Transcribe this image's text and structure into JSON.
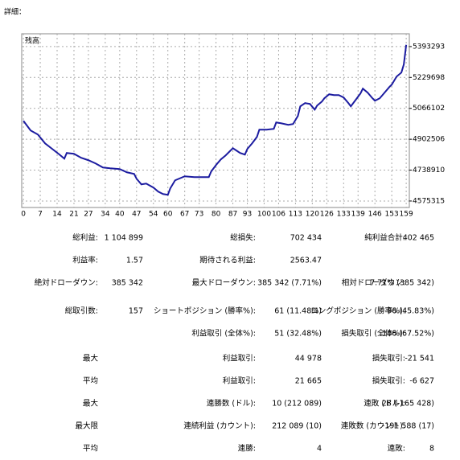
{
  "title": "詳細：",
  "chart_data": {
    "type": "line",
    "x": [
      0,
      3,
      6,
      9,
      12,
      15,
      17,
      18,
      21,
      24,
      27,
      30,
      33,
      36,
      40,
      43,
      46,
      47,
      49,
      51,
      54,
      56,
      58,
      60,
      61,
      63,
      67,
      71,
      77,
      78,
      80,
      82,
      84,
      87,
      88,
      90,
      92,
      93,
      95,
      97,
      98,
      101,
      104,
      105,
      107,
      110,
      112,
      114,
      115,
      117,
      119,
      121,
      122,
      124,
      125,
      127,
      129,
      131,
      133,
      135,
      136,
      138,
      140,
      141,
      143,
      145,
      146,
      148,
      150,
      152,
      153,
      155,
      157,
      158,
      159
    ],
    "series": [
      {
        "name": "残高",
        "color": "#1c1ca0",
        "values": [
          5000000,
          4948880,
          4927580,
          4880720,
          4850900,
          4821080,
          4799780,
          4829600,
          4825340,
          4804040,
          4791260,
          4774220,
          4752920,
          4748660,
          4744400,
          4727360,
          4718840,
          4693280,
          4663460,
          4667720,
          4646420,
          4625120,
          4612340,
          4608080,
          4642160,
          4684760,
          4706060,
          4701800,
          4701800,
          4731620,
          4765700,
          4795520,
          4816820,
          4855160,
          4846640,
          4829600,
          4821080,
          4850900,
          4880720,
          4914800,
          4953140,
          4953140,
          4957400,
          4991480,
          4987220,
          4978700,
          4982960,
          5025560,
          5076680,
          5093720,
          5089460,
          5059640,
          5080940,
          5102240,
          5119280,
          5140580,
          5136320,
          5136320,
          5123540,
          5093720,
          5076680,
          5110760,
          5144840,
          5170400,
          5149100,
          5119280,
          5106500,
          5119280,
          5149100,
          5178920,
          5191700,
          5234300,
          5255600,
          5298200,
          5402465
        ]
      }
    ],
    "xlim": [
      -0.7,
      160.3
    ],
    "xticks": [
      0,
      7,
      14,
      21,
      27,
      34,
      40,
      47,
      54,
      60,
      67,
      73,
      80,
      87,
      93,
      100,
      106,
      113,
      120,
      126,
      133,
      139,
      146,
      153,
      159
    ],
    "ylim": [
      4541000,
      5461000
    ],
    "yticks": [
      4575315,
      4738910,
      4902506,
      5066102,
      5229698,
      5393293
    ],
    "grid": true
  },
  "stats": {
    "rows": [
      [
        "総利益:",
        "1 104 899",
        "総損失:",
        "702 434",
        "純利益合計:",
        "402 465"
      ],
      [
        "利益率:",
        "1.57",
        "期待される利益:",
        "2563.47",
        null,
        null
      ],
      [
        "絶対ドローダウン:",
        "385 342",
        "最大ドローダウン:",
        "385 342 (7.71%)",
        "相対ドローダウン:",
        "7.71% (385 342)"
      ],
      [
        "総取引数:",
        "157",
        "ショートポジション (勝率%):",
        "61 (11.48%)",
        "ロングポジション (勝率%):",
        "96 (45.83%)"
      ],
      [
        null,
        null,
        "利益取引 (全体%):",
        "51 (32.48%)",
        "損失取引 (全体%):",
        "106 (67.52%)"
      ],
      [
        "最大",
        null,
        "利益取引:",
        "44 978",
        "損失取引:",
        "-21 541"
      ],
      [
        "平均",
        null,
        "利益取引:",
        "21 665",
        "損失取引:",
        "-6 627"
      ],
      [
        "最大",
        null,
        "連勝数 (ドル):",
        "10 (212 089)",
        "連敗 (ドル):",
        "28 (-165 428)"
      ],
      [
        "最大限",
        null,
        "連続利益 (カウント):",
        "212 089 (10)",
        "連敗数 (カウント):",
        "-191 588 (17)"
      ],
      [
        "平均",
        null,
        "連勝:",
        "4",
        "連敗:",
        "8"
      ]
    ]
  }
}
